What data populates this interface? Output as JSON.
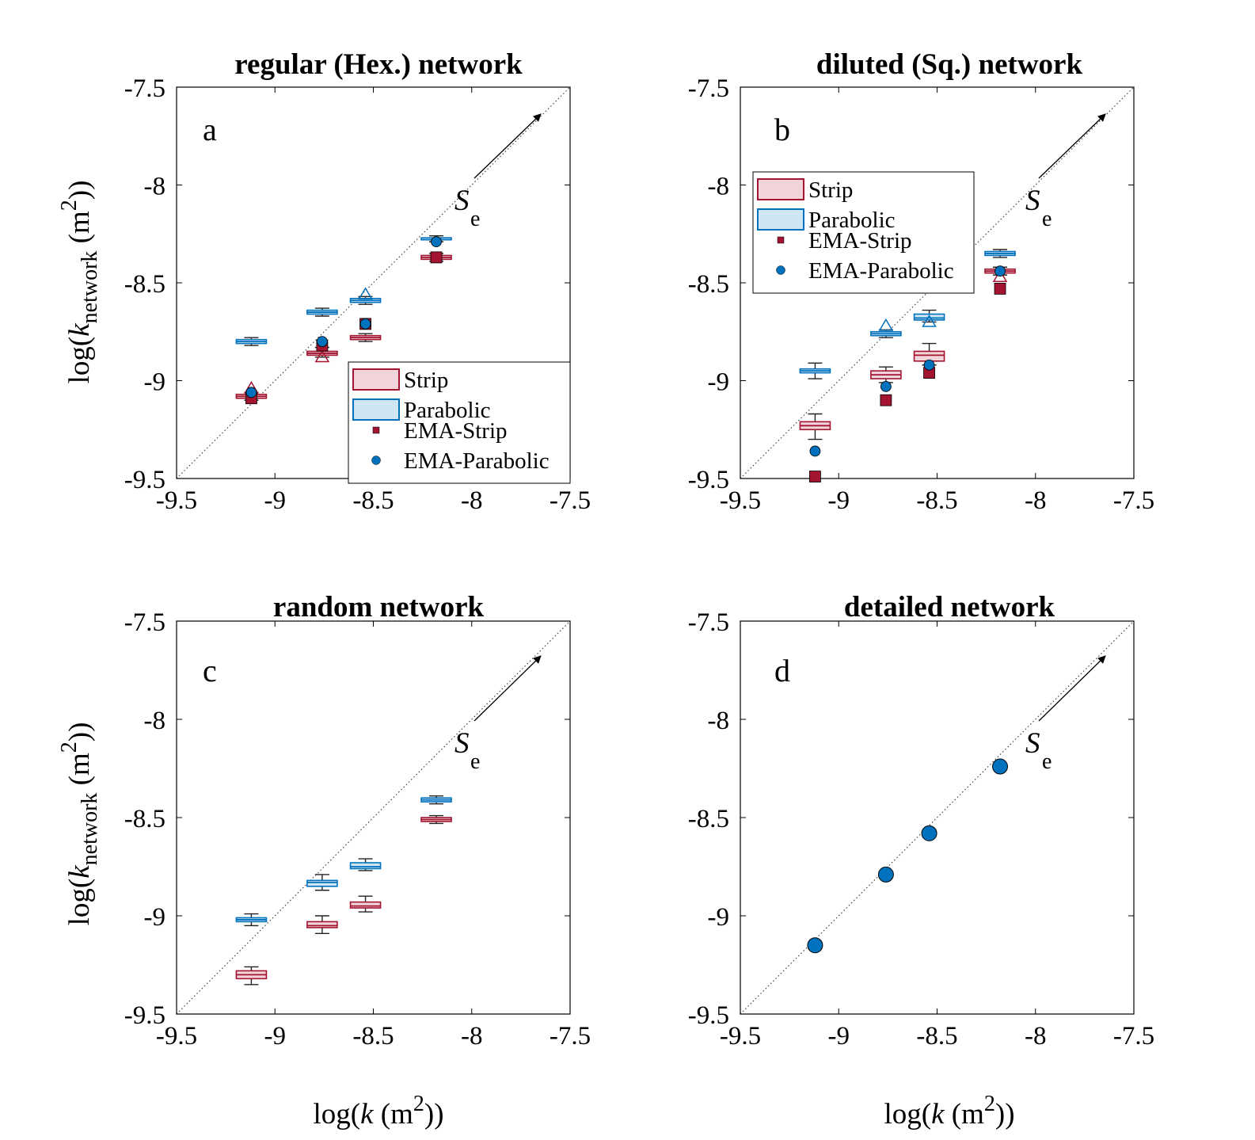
{
  "colors": {
    "strip_edge": "#a2142f",
    "strip_fill": "#f1d3da",
    "parabolic_edge": "#0072bd",
    "parabolic_fill": "#cfe5f3",
    "whisker": "#222222"
  },
  "axes_text": {
    "ylabel_pre": "log(",
    "ylabel_k": "k",
    "ylabel_sub": "network",
    "ylabel_mid": " (m",
    "ylabel_sup": "2",
    "ylabel_post": "))",
    "xlabel_pre": "log(",
    "xlabel_k": "k",
    "xlabel_mid": " (m",
    "xlabel_sup": "2",
    "xlabel_post": "))",
    "se_main": "S",
    "se_sub": "e"
  },
  "legend_labels": [
    "Strip",
    "Parabolic",
    "EMA-Strip",
    "EMA-Parabolic"
  ],
  "chart_data": [
    {
      "type": "box",
      "title": "regular (Hex.) network",
      "panel_label": "a",
      "xlim": [
        -9.5,
        -7.5
      ],
      "ylim": [
        -9.5,
        -7.5
      ],
      "xticks": [
        -9.5,
        -9,
        -8.5,
        -8,
        -7.5
      ],
      "yticks": [
        -9.5,
        -9,
        -8.5,
        -8,
        -7.5
      ],
      "xtick_labels": [
        "-9.5",
        "-9",
        "-8.5",
        "-8",
        "-7.5"
      ],
      "ytick_labels": [
        "-9.5",
        "-9",
        "-8.5",
        "-8",
        "-7.5"
      ],
      "x": [
        -9.12,
        -8.76,
        -8.54,
        -8.18
      ],
      "legend": "bottom-right",
      "strip": [
        {
          "q1": -9.09,
          "median": -9.08,
          "q3": -9.07,
          "whislo": -9.1,
          "whishi": -9.06
        },
        {
          "q1": -8.87,
          "median": -8.86,
          "q3": -8.85,
          "whislo": -8.88,
          "whishi": -8.83
        },
        {
          "q1": -8.79,
          "median": -8.78,
          "q3": -8.77,
          "whislo": -8.8,
          "whishi": -8.76
        },
        {
          "q1": -8.38,
          "median": -8.37,
          "q3": -8.36,
          "whislo": -8.39,
          "whishi": -8.35
        }
      ],
      "parabolic": [
        {
          "q1": -8.81,
          "median": -8.8,
          "q3": -8.79,
          "whislo": -8.82,
          "whishi": -8.78
        },
        {
          "q1": -8.66,
          "median": -8.65,
          "q3": -8.64,
          "whislo": -8.67,
          "whishi": -8.63
        },
        {
          "q1": -8.6,
          "median": -8.59,
          "q3": -8.58,
          "whislo": -8.61,
          "whishi": -8.57
        },
        {
          "q1": -8.28,
          "median": -8.28,
          "q3": -8.27,
          "whislo": -8.29,
          "whishi": -8.26
        }
      ],
      "ema_strip": [
        -9.09,
        -8.82,
        -8.71,
        -8.37
      ],
      "ema_parabolic": [
        -9.06,
        -8.8,
        -8.71,
        -8.29
      ],
      "strip_triangles": [
        -9.04,
        -8.88
      ],
      "parabolic_triangles": [
        -8.56
      ]
    },
    {
      "type": "box",
      "title": "diluted (Sq.) network",
      "panel_label": "b",
      "xlim": [
        -9.5,
        -7.5
      ],
      "ylim": [
        -9.5,
        -7.5
      ],
      "xticks": [
        -9.5,
        -9,
        -8.5,
        -8,
        -7.5
      ],
      "yticks": [
        -9.5,
        -9,
        -8.5,
        -8,
        -7.5
      ],
      "xtick_labels": [
        "-9.5",
        "-9",
        "-8.5",
        "-8",
        "-7.5"
      ],
      "ytick_labels": [
        "-9.5",
        "-9",
        "-8.5",
        "-8",
        "-7.5"
      ],
      "x": [
        -9.12,
        -8.76,
        -8.54,
        -8.18
      ],
      "legend": "top-left",
      "strip": [
        {
          "q1": -9.25,
          "median": -9.23,
          "q3": -9.21,
          "whislo": -9.3,
          "whishi": -9.17
        },
        {
          "q1": -8.99,
          "median": -8.97,
          "q3": -8.95,
          "whislo": -9.01,
          "whishi": -8.93
        },
        {
          "q1": -8.9,
          "median": -8.87,
          "q3": -8.85,
          "whislo": -8.92,
          "whishi": -8.81
        },
        {
          "q1": -8.45,
          "median": -8.44,
          "q3": -8.43,
          "whislo": -8.46,
          "whishi": -8.42
        }
      ],
      "parabolic": [
        {
          "q1": -8.96,
          "median": -8.95,
          "q3": -8.94,
          "whislo": -8.99,
          "whishi": -8.91
        },
        {
          "q1": -8.77,
          "median": -8.76,
          "q3": -8.75,
          "whislo": -8.78,
          "whishi": -8.74
        },
        {
          "q1": -8.69,
          "median": -8.68,
          "q3": -8.66,
          "whislo": -8.7,
          "whishi": -8.64
        },
        {
          "q1": -8.36,
          "median": -8.35,
          "q3": -8.34,
          "whislo": -8.37,
          "whishi": -8.33
        }
      ],
      "ema_strip": [
        -9.49,
        -9.1,
        -8.96,
        -8.53
      ],
      "ema_parabolic": [
        -9.36,
        -9.03,
        -8.92,
        -8.44
      ],
      "strip_triangles": [
        -8.47
      ],
      "parabolic_triangles": [
        -8.72,
        -8.7
      ]
    },
    {
      "type": "box",
      "title": "random network",
      "panel_label": "c",
      "xlim": [
        -9.5,
        -7.5
      ],
      "ylim": [
        -9.5,
        -7.5
      ],
      "xticks": [
        -9.5,
        -9,
        -8.5,
        -8,
        -7.5
      ],
      "yticks": [
        -9.5,
        -9,
        -8.5,
        -8,
        -7.5
      ],
      "xtick_labels": [
        "-9.5",
        "-9",
        "-8.5",
        "-8",
        "-7.5"
      ],
      "ytick_labels": [
        "-9.5",
        "-9",
        "-8.5",
        "-8",
        "-7.5"
      ],
      "x": [
        -9.12,
        -8.76,
        -8.54,
        -8.18
      ],
      "strip": [
        {
          "q1": -9.32,
          "median": -9.3,
          "q3": -9.28,
          "whislo": -9.35,
          "whishi": -9.26
        },
        {
          "q1": -9.06,
          "median": -9.05,
          "q3": -9.03,
          "whislo": -9.09,
          "whishi": -9.0
        },
        {
          "q1": -8.96,
          "median": -8.95,
          "q3": -8.93,
          "whislo": -8.98,
          "whishi": -8.9
        },
        {
          "q1": -8.52,
          "median": -8.51,
          "q3": -8.5,
          "whislo": -8.53,
          "whishi": -8.49
        }
      ],
      "parabolic": [
        {
          "q1": -9.03,
          "median": -9.02,
          "q3": -9.01,
          "whislo": -9.05,
          "whishi": -8.99
        },
        {
          "q1": -8.85,
          "median": -8.83,
          "q3": -8.82,
          "whislo": -8.87,
          "whishi": -8.79
        },
        {
          "q1": -8.76,
          "median": -8.75,
          "q3": -8.73,
          "whislo": -8.77,
          "whishi": -8.71
        },
        {
          "q1": -8.42,
          "median": -8.41,
          "q3": -8.4,
          "whislo": -8.43,
          "whishi": -8.39
        }
      ]
    },
    {
      "type": "scatter",
      "title": "detailed network",
      "panel_label": "d",
      "xlim": [
        -9.5,
        -7.5
      ],
      "ylim": [
        -9.5,
        -7.5
      ],
      "xticks": [
        -9.5,
        -9,
        -8.5,
        -8,
        -7.5
      ],
      "yticks": [
        -9.5,
        -9,
        -8.5,
        -8,
        -7.5
      ],
      "xtick_labels": [
        "-9.5",
        "-9",
        "-8.5",
        "-8",
        "-7.5"
      ],
      "ytick_labels": [
        "-9.5",
        "-9",
        "-8.5",
        "-8",
        "-7.5"
      ],
      "x": [
        -9.12,
        -8.76,
        -8.54,
        -8.18
      ],
      "y": [
        -9.15,
        -8.79,
        -8.58,
        -8.24
      ]
    }
  ]
}
